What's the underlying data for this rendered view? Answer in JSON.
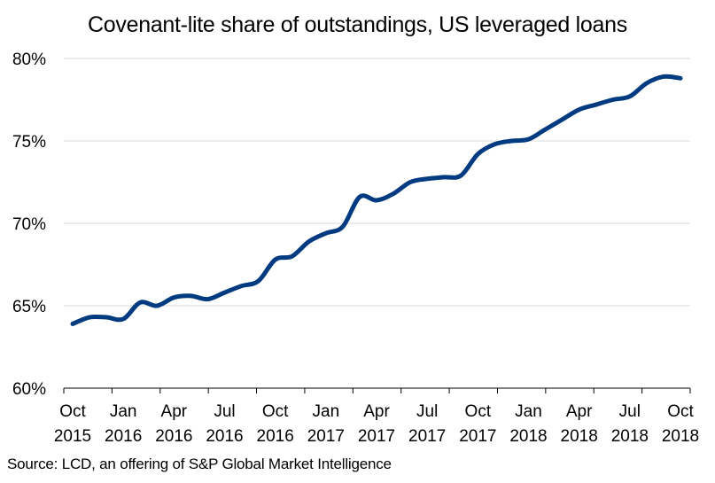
{
  "chart_data": {
    "type": "line",
    "title": "Covenant-lite share of outstandings, US leveraged loans",
    "source": "Source: LCD, an offering of S&P Global Market Intelligence",
    "xlabel": "",
    "ylabel": "",
    "ylim": [
      60,
      80
    ],
    "yticks": [
      60,
      65,
      70,
      75,
      80
    ],
    "ytick_labels": [
      "60%",
      "65%",
      "70%",
      "75%",
      "80%"
    ],
    "xticks": [
      {
        "line1": "Oct",
        "line2": "2015"
      },
      {
        "line1": "Jan",
        "line2": "2016"
      },
      {
        "line1": "Apr",
        "line2": "2016"
      },
      {
        "line1": "Jul",
        "line2": "2016"
      },
      {
        "line1": "Oct",
        "line2": "2016"
      },
      {
        "line1": "Jan",
        "line2": "2017"
      },
      {
        "line1": "Apr",
        "line2": "2017"
      },
      {
        "line1": "Jul",
        "line2": "2017"
      },
      {
        "line1": "Oct",
        "line2": "2017"
      },
      {
        "line1": "Jan",
        "line2": "2018"
      },
      {
        "line1": "Apr",
        "line2": "2018"
      },
      {
        "line1": "Jul",
        "line2": "2018"
      },
      {
        "line1": "Oct",
        "line2": "2018"
      }
    ],
    "grid": true,
    "line_color": "#003a80",
    "series": [
      {
        "x": [
          "2015-10",
          "2015-11",
          "2015-12",
          "2016-01",
          "2016-02",
          "2016-03",
          "2016-04",
          "2016-05",
          "2016-06",
          "2016-07",
          "2016-08",
          "2016-09",
          "2016-10",
          "2016-11",
          "2016-12",
          "2017-01",
          "2017-02",
          "2017-03",
          "2017-04",
          "2017-05",
          "2017-06",
          "2017-07",
          "2017-08",
          "2017-09",
          "2017-10",
          "2017-11",
          "2017-12",
          "2018-01",
          "2018-02",
          "2018-03",
          "2018-04",
          "2018-05",
          "2018-06",
          "2018-07",
          "2018-08",
          "2018-09",
          "2018-10"
        ],
        "values": [
          63.9,
          64.3,
          64.3,
          64.2,
          65.2,
          65.0,
          65.5,
          65.6,
          65.4,
          65.8,
          66.2,
          66.5,
          67.8,
          68.0,
          68.9,
          69.4,
          69.8,
          71.6,
          71.4,
          71.8,
          72.5,
          72.7,
          72.8,
          72.9,
          74.2,
          74.8,
          75.0,
          75.1,
          75.7,
          76.3,
          76.9,
          77.2,
          77.5,
          77.7,
          78.5,
          78.9,
          78.8
        ]
      }
    ]
  }
}
